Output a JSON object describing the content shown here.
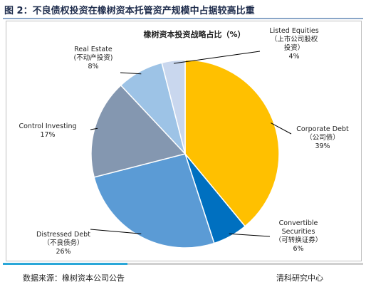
{
  "figure_title": "图 2：不良债权投资在橡树资本托管资产规模中占据较高比重",
  "footer": {
    "source": "数据来源：橡树资本公司公告",
    "brand": "清科研究中心"
  },
  "colors": {
    "rule": "#8aa6c8",
    "accent": "#2aa7d8"
  },
  "chart_data": {
    "type": "pie",
    "title": "橡树资本投资战略占比（%）",
    "unit": "%",
    "start_angle_deg": 0,
    "direction": "clockwise",
    "slices": [
      {
        "label": "Corporate Debt",
        "label_cn": "（公司债）",
        "value": 39,
        "value_label": "39%",
        "color": "#ffc000"
      },
      {
        "label": "Convertible Securities",
        "label_cn": "（可转换证券）",
        "value": 6,
        "value_label": "6%",
        "color": "#0070c0"
      },
      {
        "label": "Distressed Debt",
        "label_cn": "（不良债务）",
        "value": 26,
        "value_label": "26%",
        "color": "#5b9bd5"
      },
      {
        "label": "Control Investing",
        "label_cn": "",
        "value": 17,
        "value_label": "17%",
        "color": "#8497b0"
      },
      {
        "label": "Real Estate",
        "label_cn": "(不动产投资)",
        "value": 8,
        "value_label": "8%",
        "color": "#9dc3e6"
      },
      {
        "label": "Listed Equities",
        "label_cn": "（上市公司股权投资）",
        "value": 4,
        "value_label": "4%",
        "color": "#c9d7ee"
      }
    ]
  }
}
